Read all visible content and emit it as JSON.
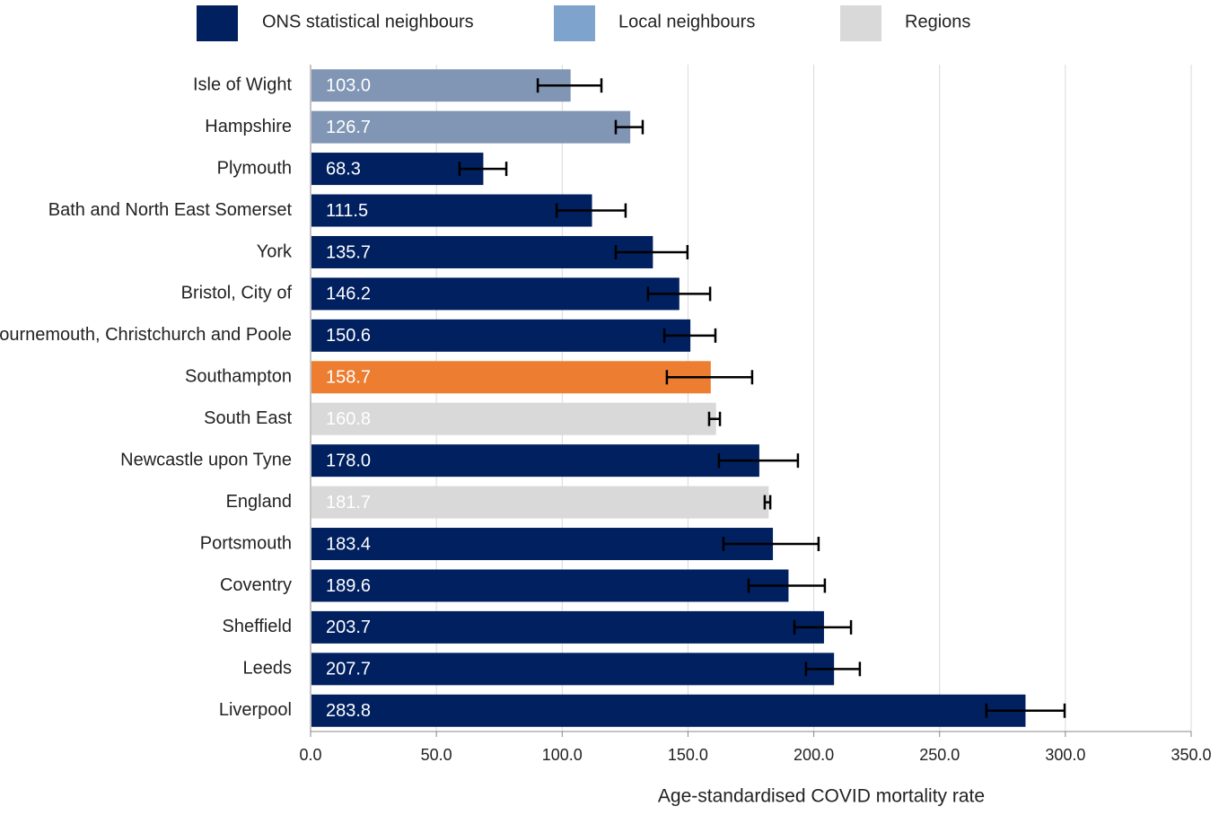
{
  "chart_data": {
    "type": "bar",
    "orientation": "horizontal",
    "x_label": "Age-standardised COVID mortality rate",
    "legend": [
      {
        "name": "ONS statistical neighbours",
        "color": "#002060"
      },
      {
        "name": "Local neighbours",
        "color": "#7ea3cc"
      },
      {
        "name": "Regions",
        "color": "#d9d9d9"
      }
    ],
    "categories": [
      "Isle of Wight",
      "Hampshire",
      "Plymouth",
      "Bath and North East Somerset",
      "York",
      "Bristol, City of",
      "Bournemouth, Christchurch and Poole",
      "Southampton",
      "South East",
      "Newcastle upon Tyne",
      "England",
      "Portsmouth",
      "Coventry",
      "Sheffield",
      "Leeds",
      "Liverpool"
    ],
    "values": [
      103.0,
      126.7,
      68.3,
      111.5,
      135.7,
      146.2,
      150.6,
      158.7,
      160.8,
      178.0,
      181.7,
      183.4,
      189.6,
      203.7,
      207.7,
      283.8
    ],
    "value_labels": [
      "103.0",
      "126.7",
      "68.3",
      "111.5",
      "135.7",
      "146.2",
      "150.6",
      "158.7",
      "160.8",
      "178.0",
      "181.7",
      "183.4",
      "189.6",
      "203.7",
      "207.7",
      "283.8"
    ],
    "ci_lower": [
      90.3,
      121.3,
      59.2,
      97.8,
      121.3,
      134.1,
      140.6,
      141.6,
      158.4,
      162.3,
      180.5,
      164.1,
      174.1,
      192.3,
      196.9,
      268.6
    ],
    "ci_upper": [
      115.6,
      132.0,
      77.8,
      125.2,
      149.8,
      158.8,
      160.9,
      175.5,
      162.7,
      193.7,
      182.7,
      201.9,
      204.4,
      214.8,
      218.3,
      299.7
    ],
    "colors": [
      "#8096b4",
      "#8096b4",
      "#002060",
      "#002060",
      "#002060",
      "#002060",
      "#002060",
      "#ed7d31",
      "#d9d9d9",
      "#002060",
      "#d9d9d9",
      "#002060",
      "#002060",
      "#002060",
      "#002060",
      "#002060"
    ],
    "xlim": [
      0,
      350
    ],
    "xticks": [
      {
        "value": 0,
        "label": "0.0"
      },
      {
        "value": 50,
        "label": "50.0"
      },
      {
        "value": 100,
        "label": "100.0"
      },
      {
        "value": 150,
        "label": "150.0"
      },
      {
        "value": 200,
        "label": "200.0"
      },
      {
        "value": 250,
        "label": "250.0"
      },
      {
        "value": 300,
        "label": "300.0"
      },
      {
        "value": 350,
        "label": "350.0"
      }
    ],
    "grid": true
  }
}
